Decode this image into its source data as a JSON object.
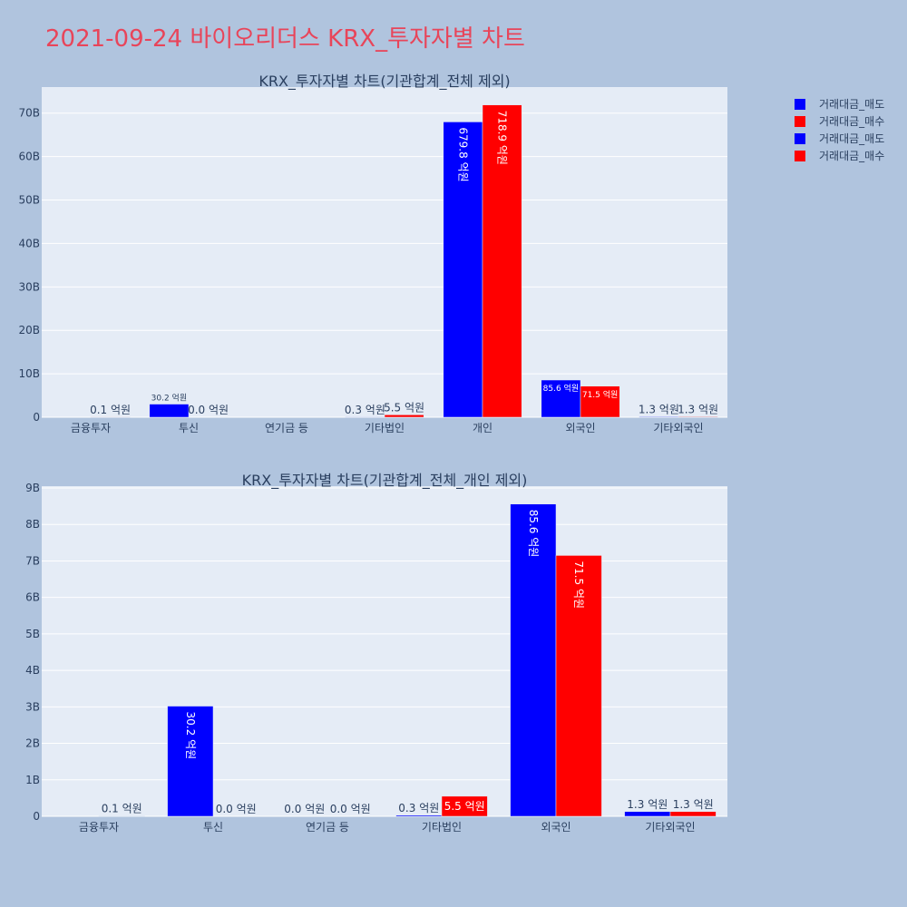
{
  "page_title": "2021-09-24 바이오리더스 KRX_투자자별 차트",
  "legend": [
    {
      "label": "거래대금_매도",
      "color": "#0000ff"
    },
    {
      "label": "거래대금_매수",
      "color": "#ff0000"
    },
    {
      "label": "거래대금_매도",
      "color": "#0000ff"
    },
    {
      "label": "거래대금_매수",
      "color": "#ff0000"
    }
  ],
  "chart_data": [
    {
      "type": "bar",
      "title": "KRX_투자자별 차트(기관합계_전체 제외)",
      "categories": [
        "금융투자",
        "투신",
        "연기금 등",
        "기타법인",
        "개인",
        "외국인",
        "기타외국인"
      ],
      "ylim": [
        0,
        76
      ],
      "yticks": [
        0,
        10,
        20,
        30,
        40,
        50,
        60,
        70
      ],
      "ytick_labels": [
        "0",
        "10B",
        "20B",
        "30B",
        "40B",
        "50B",
        "60B",
        "70B"
      ],
      "series": [
        {
          "name": "거래대금_매도",
          "color": "#0000ff",
          "values": [
            0.0,
            3.02,
            0.0,
            0.03,
            67.98,
            8.56,
            0.13
          ],
          "labels": [
            "",
            "30.2 억원",
            "",
            "0.3 억원",
            "679.8 억원",
            "85.6 억원",
            "1.3 억원"
          ]
        },
        {
          "name": "거래대금_매수",
          "color": "#ff0000",
          "values": [
            0.01,
            0.0,
            0.0,
            0.55,
            71.89,
            7.15,
            0.13
          ],
          "labels": [
            "0.1 억원",
            "0.0 억원",
            "",
            "5.5 억원",
            "718.9 억원",
            "71.5 억원",
            "1.3 억원"
          ]
        }
      ],
      "grid": true
    },
    {
      "type": "bar",
      "title": "KRX_투자자별 차트(기관합계_전체_개인 제외)",
      "categories": [
        "금융투자",
        "투신",
        "연기금 등",
        "기타법인",
        "외국인",
        "기타외국인"
      ],
      "ylim": [
        0,
        9.05
      ],
      "yticks": [
        0,
        1,
        2,
        3,
        4,
        5,
        6,
        7,
        8,
        9
      ],
      "ytick_labels": [
        "0",
        "1B",
        "2B",
        "3B",
        "4B",
        "5B",
        "6B",
        "7B",
        "8B",
        "9B"
      ],
      "series": [
        {
          "name": "거래대금_매도",
          "color": "#0000ff",
          "values": [
            0.0,
            3.02,
            0.0,
            0.03,
            8.56,
            0.13
          ],
          "labels": [
            "",
            "30.2 억원",
            "0.0 억원",
            "0.3 억원",
            "85.6 억원",
            "1.3 억원"
          ]
        },
        {
          "name": "거래대금_매수",
          "color": "#ff0000",
          "values": [
            0.01,
            0.0,
            0.0,
            0.55,
            7.15,
            0.13
          ],
          "labels": [
            "0.1 억원",
            "0.0 억원",
            "0.0 억원",
            "5.5 억원",
            "71.5 억원",
            "1.3 억원"
          ]
        }
      ],
      "grid": true
    }
  ]
}
